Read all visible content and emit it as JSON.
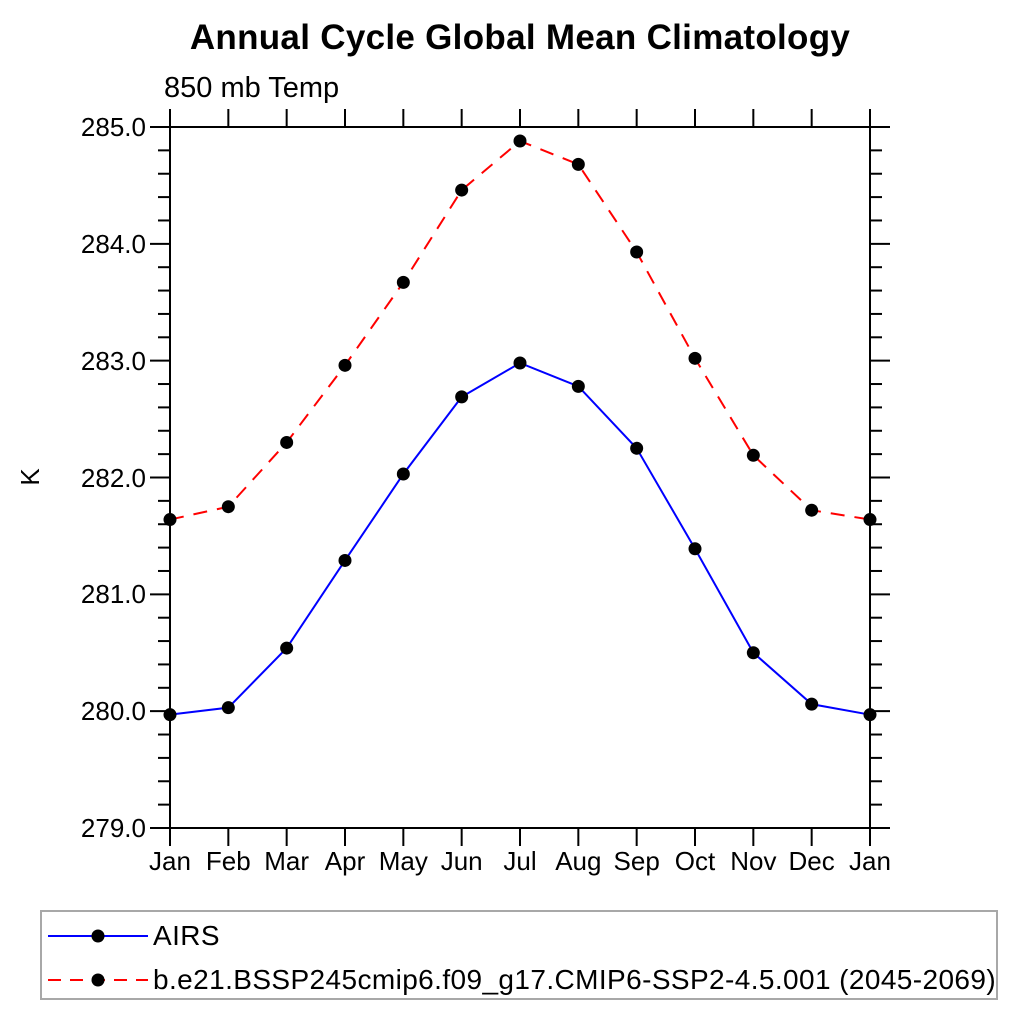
{
  "chart_data": {
    "type": "line",
    "title": "Annual Cycle Global Mean Climatology",
    "subtitle": "850 mb Temp",
    "ylabel": "K",
    "xlabel": "",
    "x_categories": [
      "Jan",
      "Feb",
      "Mar",
      "Apr",
      "May",
      "Jun",
      "Jul",
      "Aug",
      "Sep",
      "Oct",
      "Nov",
      "Dec",
      "Jan"
    ],
    "ylim": [
      279.0,
      285.0
    ],
    "y_major_ticks": [
      279.0,
      280.0,
      281.0,
      282.0,
      283.0,
      284.0,
      285.0
    ],
    "y_minor_step": 0.2,
    "grid": "off",
    "legend_position": "bottom-left-box",
    "frame_color": "#000000",
    "series": [
      {
        "name": "AIRS",
        "line_color": "#0000ff",
        "line_style": "solid",
        "marker": "filled-circle",
        "marker_color": "#000000",
        "values": [
          279.97,
          280.03,
          280.54,
          281.29,
          282.03,
          282.69,
          282.98,
          282.78,
          282.25,
          281.39,
          280.5,
          280.06,
          279.97
        ]
      },
      {
        "name": "b.e21.BSSP245cmip6.f09_g17.CMIP6-SSP2-4.5.001 (2045-2069)",
        "line_color": "#ff0000",
        "line_style": "dashed",
        "marker": "filled-circle",
        "marker_color": "#000000",
        "values": [
          281.64,
          281.75,
          282.3,
          282.96,
          283.67,
          284.46,
          284.88,
          284.68,
          283.93,
          283.02,
          282.19,
          281.72,
          281.64
        ]
      }
    ]
  }
}
